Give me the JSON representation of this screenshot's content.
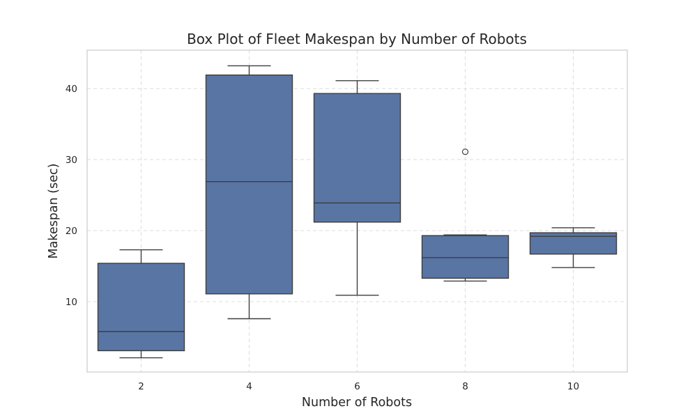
{
  "chart_data": {
    "type": "box",
    "title": "Box Plot of Fleet Makespan by Number of Robots",
    "xlabel": "Number of Robots",
    "ylabel": "Makespan (sec)",
    "categories": [
      "2",
      "4",
      "6",
      "8",
      "10"
    ],
    "yticks": [
      10,
      20,
      30,
      40
    ],
    "ylim": [
      0.1,
      45.4
    ],
    "grid": true,
    "box_color": "#5975a4",
    "line_color": "#3d3d3d",
    "grid_color": "#dcdcdc",
    "frame_color": "#cccccc",
    "boxes": [
      {
        "category": "2",
        "whisker_low": 2.1,
        "q1": 3.1,
        "median": 5.8,
        "q3": 15.4,
        "whisker_high": 17.3,
        "outliers": []
      },
      {
        "category": "4",
        "whisker_low": 7.6,
        "q1": 11.1,
        "median": 26.9,
        "q3": 41.9,
        "whisker_high": 43.2,
        "outliers": []
      },
      {
        "category": "6",
        "whisker_low": 10.9,
        "q1": 21.2,
        "median": 23.9,
        "q3": 39.3,
        "whisker_high": 41.1,
        "outliers": []
      },
      {
        "category": "8",
        "whisker_low": 12.9,
        "q1": 13.3,
        "median": 16.2,
        "q3": 19.3,
        "whisker_high": 19.4,
        "outliers": [
          31.1
        ]
      },
      {
        "category": "10",
        "whisker_low": 14.8,
        "q1": 16.7,
        "median": 19.2,
        "q3": 19.7,
        "whisker_high": 20.4,
        "outliers": []
      }
    ]
  }
}
